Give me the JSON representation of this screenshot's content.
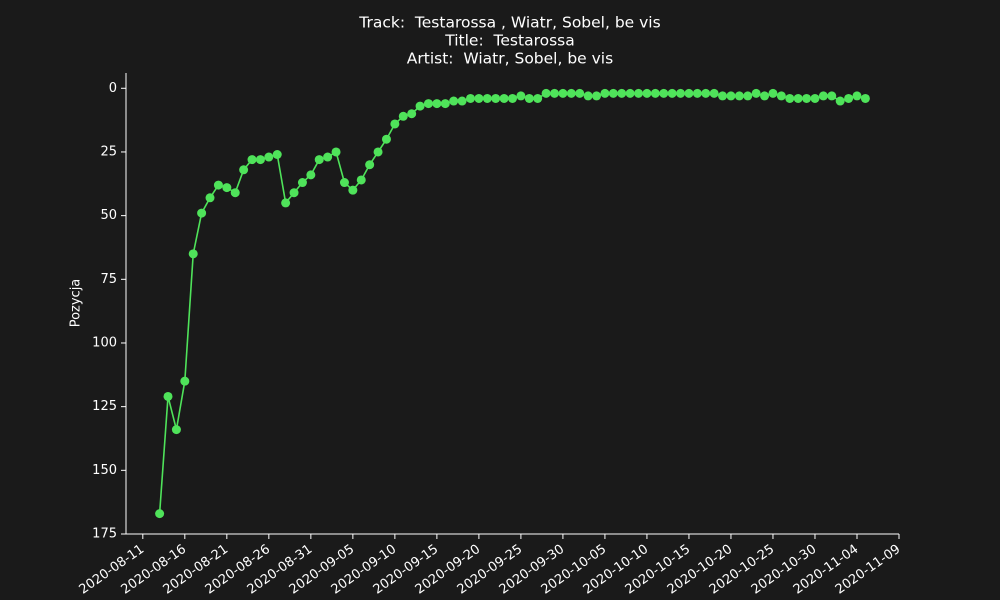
{
  "chart_data": {
    "type": "line",
    "title": [
      "Track:  Testarossa , Wiatr, Sobel, be vis",
      "Title:  Testarossa",
      "Artist:  Wiatr, Sobel, be vis"
    ],
    "y_label": "Pozycja",
    "invert_y": true,
    "x": [
      "2020-08-13",
      "2020-08-14",
      "2020-08-15",
      "2020-08-16",
      "2020-08-17",
      "2020-08-18",
      "2020-08-19",
      "2020-08-20",
      "2020-08-21",
      "2020-08-22",
      "2020-08-23",
      "2020-08-24",
      "2020-08-25",
      "2020-08-26",
      "2020-08-27",
      "2020-08-28",
      "2020-08-29",
      "2020-08-30",
      "2020-08-31",
      "2020-09-01",
      "2020-09-02",
      "2020-09-03",
      "2020-09-04",
      "2020-09-05",
      "2020-09-06",
      "2020-09-07",
      "2020-09-08",
      "2020-09-09",
      "2020-09-10",
      "2020-09-11",
      "2020-09-12",
      "2020-09-13",
      "2020-09-14",
      "2020-09-15",
      "2020-09-16",
      "2020-09-17",
      "2020-09-18",
      "2020-09-19",
      "2020-09-20",
      "2020-09-21",
      "2020-09-22",
      "2020-09-23",
      "2020-09-24",
      "2020-09-25",
      "2020-09-26",
      "2020-09-27",
      "2020-09-28",
      "2020-09-29",
      "2020-09-30",
      "2020-10-01",
      "2020-10-02",
      "2020-10-03",
      "2020-10-04",
      "2020-10-05",
      "2020-10-06",
      "2020-10-07",
      "2020-10-08",
      "2020-10-09",
      "2020-10-10",
      "2020-10-11",
      "2020-10-12",
      "2020-10-13",
      "2020-10-14",
      "2020-10-15",
      "2020-10-16",
      "2020-10-17",
      "2020-10-18",
      "2020-10-19",
      "2020-10-20",
      "2020-10-21",
      "2020-10-22",
      "2020-10-23",
      "2020-10-24",
      "2020-10-25",
      "2020-10-26",
      "2020-10-27",
      "2020-10-28",
      "2020-10-29",
      "2020-10-30",
      "2020-10-31",
      "2020-11-01",
      "2020-11-02",
      "2020-11-03",
      "2020-11-04",
      "2020-11-05"
    ],
    "series": [
      {
        "color": "#4fe35a",
        "values": [
          167,
          121,
          134,
          115,
          65,
          49,
          43,
          38,
          39,
          41,
          32,
          28,
          28,
          27,
          26,
          45,
          41,
          37,
          34,
          28,
          27,
          25,
          37,
          40,
          36,
          30,
          25,
          20,
          14,
          11,
          10,
          7,
          6,
          6,
          6,
          5,
          5,
          4,
          4,
          4,
          4,
          4,
          4,
          3,
          4,
          4,
          2,
          2,
          2,
          2,
          2,
          3,
          3,
          2,
          2,
          2,
          2,
          2,
          2,
          2,
          2,
          2,
          2,
          2,
          2,
          2,
          2,
          3,
          3,
          3,
          3,
          2,
          3,
          2,
          3,
          4,
          4,
          4,
          4,
          3,
          3,
          5,
          4,
          3,
          4
        ]
      }
    ],
    "xlim": [
      "2020-08-09",
      "2020-11-09"
    ],
    "xticks": [
      "2020-08-11",
      "2020-08-16",
      "2020-08-21",
      "2020-08-26",
      "2020-08-31",
      "2020-09-05",
      "2020-09-10",
      "2020-09-15",
      "2020-09-20",
      "2020-09-25",
      "2020-09-30",
      "2020-10-05",
      "2020-10-10",
      "2020-10-15",
      "2020-10-20",
      "2020-10-25",
      "2020-10-30",
      "2020-11-04",
      "2020-11-09"
    ],
    "ylim": [
      -6,
      175
    ],
    "yticks": [
      0,
      25,
      50,
      75,
      100,
      125,
      150,
      175
    ]
  }
}
